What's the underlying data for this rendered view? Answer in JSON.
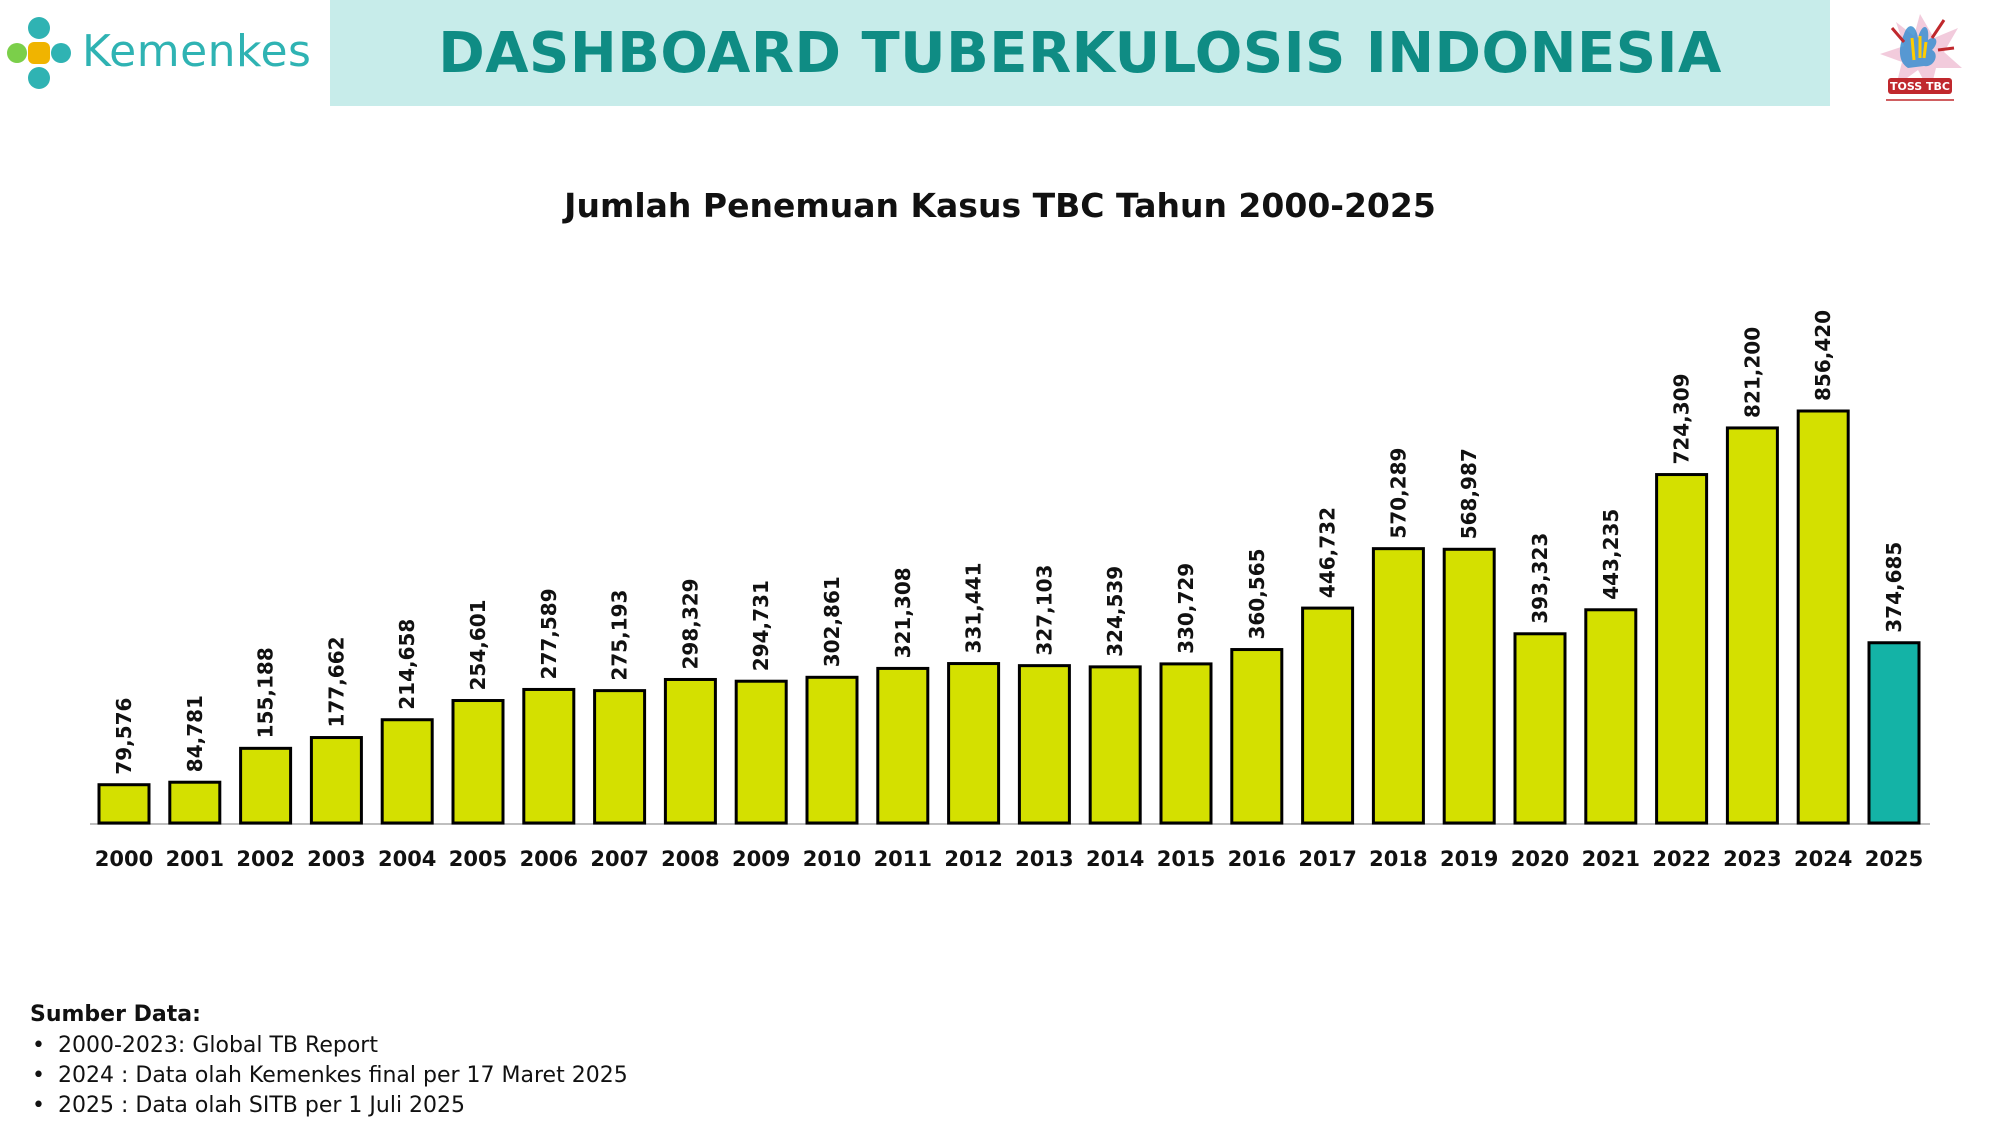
{
  "header": {
    "brand": "Kemenkes",
    "title": "DASHBOARD TUBERKULOSIS INDONESIA",
    "logo_mark_icon": "kemenkes-plus-icon",
    "right_logo_icon": "toss-tbc-logo",
    "right_logo_text": "TOSS TBC",
    "colors": {
      "brand": "#2fb3b3",
      "banner_bg": "#c7ecea",
      "banner_text": "#0f8c84"
    }
  },
  "chart_data": {
    "type": "bar",
    "title": "Jumlah Penemuan Kasus TBC Tahun 2000-2025",
    "xlabel": "",
    "ylabel": "",
    "ylim": [
      0,
      900000
    ],
    "grid": false,
    "legend": "none",
    "categories": [
      "2000",
      "2001",
      "2002",
      "2003",
      "2004",
      "2005",
      "2006",
      "2007",
      "2008",
      "2009",
      "2010",
      "2011",
      "2012",
      "2013",
      "2014",
      "2015",
      "2016",
      "2017",
      "2018",
      "2019",
      "2020",
      "2021",
      "2022",
      "2023",
      "2024",
      "2025"
    ],
    "values": [
      79576,
      84781,
      155188,
      177662,
      214658,
      254601,
      277589,
      275193,
      298329,
      294731,
      302861,
      321308,
      331441,
      327103,
      324539,
      330729,
      360565,
      446732,
      570289,
      568987,
      393323,
      443235,
      724309,
      821200,
      856420,
      374685
    ],
    "value_labels": [
      "79,576",
      "84,781",
      "155,188",
      "177,662",
      "214,658",
      "254,601",
      "277,589",
      "275,193",
      "298,329",
      "294,731",
      "302,861",
      "321,308",
      "331,441",
      "327,103",
      "324,539",
      "330,729",
      "360,565",
      "446,732",
      "570,289",
      "568,987",
      "393,323",
      "443,235",
      "724,309",
      "821,200",
      "856,420",
      "374,685"
    ],
    "colors": {
      "default": "#d4e000",
      "highlight": "#14b3a6",
      "outline": "#000000"
    },
    "highlight_categories": [
      "2025"
    ]
  },
  "source": {
    "title": "Sumber Data:",
    "items": [
      "2000-2023: Global TB Report",
      "2024 : Data olah Kemenkes final per 17 Maret 2025",
      "2025 : Data olah SITB per 1 Juli 2025"
    ]
  }
}
